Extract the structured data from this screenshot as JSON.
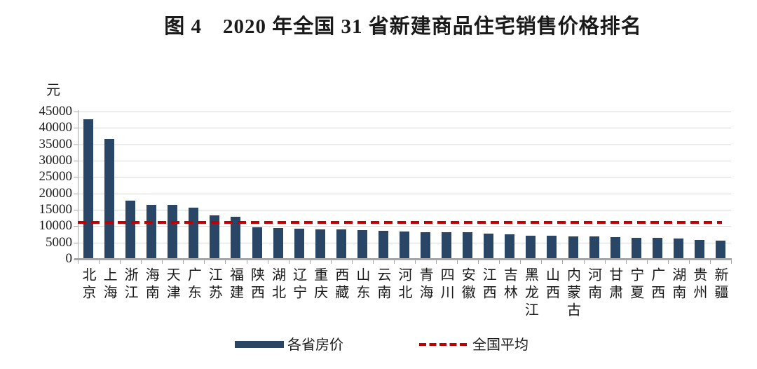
{
  "title": "图 4　2020 年全国 31 省新建商品住宅销售价格排名",
  "legend": {
    "bars_label": "各省房价",
    "average_label": "全国平均"
  },
  "colors": {
    "bar": "#2a4666",
    "average_line": "#c00000",
    "gridline": "#d9d9d9",
    "axis": "#a6a6a6",
    "text": "#1a1a1a",
    "background": "#ffffff"
  },
  "chart_data": {
    "type": "bar",
    "title": "图 4　2020 年全国 31 省新建商品住宅销售价格排名",
    "unit_label": "元",
    "xlabel": "",
    "ylabel": "元",
    "ylim": [
      0,
      45000
    ],
    "ytick_step": 5000,
    "yticks": [
      0,
      5000,
      10000,
      15000,
      20000,
      25000,
      30000,
      35000,
      40000,
      45000
    ],
    "grid": true,
    "legend_position": "bottom",
    "categories": [
      "北京",
      "上海",
      "浙江",
      "海南",
      "天津",
      "广东",
      "江苏",
      "福建",
      "陕西",
      "湖北",
      "辽宁",
      "重庆",
      "西藏",
      "山东",
      "云南",
      "河北",
      "青海",
      "四川",
      "安徽",
      "江西",
      "吉林",
      "黑龙江",
      "山西",
      "内蒙古",
      "河南",
      "甘肃",
      "宁夏",
      "广西",
      "湖南",
      "贵州",
      "新疆"
    ],
    "series": [
      {
        "name": "各省房价",
        "type": "bar",
        "values": [
          42700,
          36700,
          17800,
          16600,
          16500,
          15700,
          13300,
          12800,
          9600,
          9400,
          9200,
          9100,
          8900,
          8700,
          8600,
          8400,
          8200,
          8200,
          8100,
          7800,
          7500,
          7100,
          7100,
          6800,
          6800,
          6600,
          6400,
          6400,
          6300,
          5700,
          5500
        ]
      }
    ],
    "reference_line": {
      "name": "全国平均",
      "style": "dashed",
      "value": 11200
    }
  }
}
